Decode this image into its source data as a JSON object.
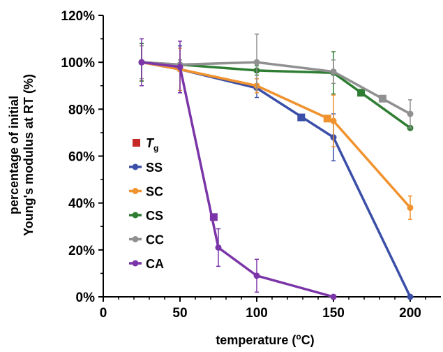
{
  "chart_data": {
    "type": "line",
    "xlabel": "temperature (",
    "xlabel_sup": "o",
    "xlabel_end": "C)",
    "ylabel_line1": "percentage of initial",
    "ylabel_line2": "Young's modulus at RT (%)",
    "xlim": [
      0,
      220
    ],
    "ylim": [
      0,
      1.2
    ],
    "x_ticks": [
      0,
      50,
      100,
      150,
      200
    ],
    "y_ticks": [
      0,
      0.2,
      0.4,
      0.6,
      0.8,
      1.0,
      1.2
    ],
    "y_tick_labels": [
      "0%",
      "20%",
      "40%",
      "60%",
      "80%",
      "100%",
      "120%"
    ],
    "x_tick_labels": [
      "0",
      "50",
      "100",
      "150",
      "200"
    ],
    "grid": false,
    "legend_position": "left",
    "tg_label": "T",
    "tg_sub": "g",
    "tg_color": "#c62828",
    "series": [
      {
        "name": "SS",
        "color": "#3b4fa8",
        "points": [
          {
            "x": 25,
            "y": 1.0,
            "err": 0.08
          },
          {
            "x": 50,
            "y": 0.97,
            "err": 0.1
          },
          {
            "x": 100,
            "y": 0.89,
            "err": 0.04
          },
          {
            "x": 150,
            "y": 0.68,
            "err": 0.1
          },
          {
            "x": 200,
            "y": 0.0,
            "err": 0.0
          }
        ],
        "tg": {
          "x": 129,
          "y": 0.765
        }
      },
      {
        "name": "SC",
        "color": "#f0922e",
        "points": [
          {
            "x": 25,
            "y": 1.0,
            "err": 0.08
          },
          {
            "x": 50,
            "y": 0.97,
            "err": 0.09
          },
          {
            "x": 100,
            "y": 0.9,
            "err": 0.03
          },
          {
            "x": 150,
            "y": 0.75,
            "err": 0.11
          },
          {
            "x": 200,
            "y": 0.38,
            "err": 0.05
          }
        ],
        "tg": {
          "x": 146,
          "y": 0.76
        }
      },
      {
        "name": "CS",
        "color": "#2e7d32",
        "points": [
          {
            "x": 25,
            "y": 1.0,
            "err": 0.08
          },
          {
            "x": 50,
            "y": 0.99,
            "err": 0.02
          },
          {
            "x": 100,
            "y": 0.965,
            "err": 0.02
          },
          {
            "x": 150,
            "y": 0.955,
            "err": 0.09
          },
          {
            "x": 200,
            "y": 0.72,
            "err": 0.0
          }
        ],
        "tg": {
          "x": 168,
          "y": 0.87
        }
      },
      {
        "name": "CC",
        "color": "#909090",
        "points": [
          {
            "x": 25,
            "y": 1.0,
            "err": 0.07
          },
          {
            "x": 50,
            "y": 0.99,
            "err": 0.02
          },
          {
            "x": 100,
            "y": 1.0,
            "err": 0.12
          },
          {
            "x": 150,
            "y": 0.96,
            "err": 0.05
          },
          {
            "x": 200,
            "y": 0.78,
            "err": 0.06
          }
        ],
        "tg": {
          "x": 182,
          "y": 0.845
        }
      },
      {
        "name": "CA",
        "color": "#7b35a8",
        "points": [
          {
            "x": 25,
            "y": 1.0,
            "err": 0.1
          },
          {
            "x": 50,
            "y": 0.98,
            "err": 0.11
          },
          {
            "x": 75,
            "y": 0.21,
            "err": 0.08
          },
          {
            "x": 100,
            "y": 0.09,
            "err": 0.07
          },
          {
            "x": 150,
            "y": 0.0,
            "err": 0.0
          }
        ],
        "tg": {
          "x": 72,
          "y": 0.34
        }
      }
    ]
  }
}
